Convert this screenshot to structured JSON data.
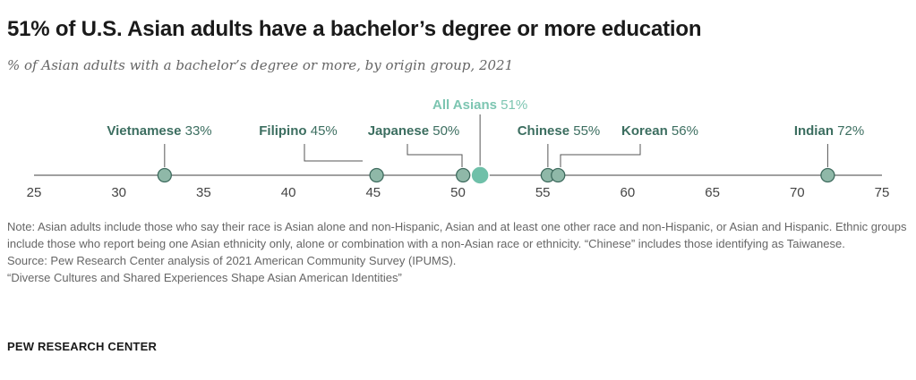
{
  "title": "51% of U.S. Asian adults have a bachelor’s degree or more education",
  "subtitle": "% of Asian adults with a bachelor’s degree or more, by origin group, 2021",
  "colors": {
    "marker": "#8fb8a8",
    "marker_stroke": "#3e6b5e",
    "highlight": "#6fc0a9",
    "label": "#3c6e60",
    "highlight_label": "#7cc5b1",
    "axis": "#666666"
  },
  "chart_data": {
    "type": "scatter",
    "xlim": [
      25,
      75
    ],
    "xticks": [
      25,
      30,
      35,
      40,
      45,
      50,
      55,
      60,
      65,
      70,
      75
    ],
    "points": [
      {
        "name": "Vietnamese",
        "value": 33,
        "label": "33%",
        "x": 32.7
      },
      {
        "name": "Filipino",
        "value": 45,
        "label": "45%",
        "x": 45.2
      },
      {
        "name": "Japanese",
        "value": 50,
        "label": "50%",
        "x": 50.3
      },
      {
        "name": "All Asians",
        "value": 51,
        "label": "51%",
        "x": 51.3,
        "highlight": true
      },
      {
        "name": "Chinese",
        "value": 55,
        "label": "55%",
        "x": 55.3
      },
      {
        "name": "Korean",
        "value": 56,
        "label": "56%",
        "x": 55.9
      },
      {
        "name": "Indian",
        "value": 72,
        "label": "72%",
        "x": 71.8
      }
    ]
  },
  "notes": [
    "Note: Asian adults include those who say their race is Asian alone and non-Hispanic, Asian and at least one other race and non-Hispanic, or Asian and Hispanic. Ethnic groups include those who report being one Asian ethnicity only, alone or combination with a non-Asian race or ethnicity. “Chinese” includes those identifying as Taiwanese.",
    "Source: Pew Research Center analysis of 2021 American Community Survey (IPUMS).",
    "“Diverse Cultures and Shared Experiences Shape Asian American Identities”"
  ],
  "footer": "PEW RESEARCH CENTER"
}
